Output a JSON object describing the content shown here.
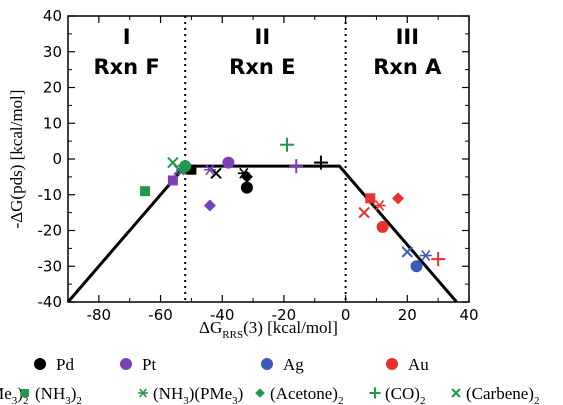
{
  "chart_data": {
    "type": "scatter",
    "xlabel_main": "ΔG",
    "xlabel_sub": "RRS",
    "xlabel_rest": "(3) [kcal/mol]",
    "ylabel": "-ΔG(pds) [kcal/mol]",
    "xlim": [
      -90,
      40
    ],
    "ylim": [
      -40,
      40
    ],
    "xticks": [
      -80,
      -60,
      -40,
      -20,
      0,
      20,
      40
    ],
    "yticks": [
      -40,
      -30,
      -20,
      -10,
      0,
      10,
      20,
      30,
      40
    ],
    "grid": false,
    "regions": [
      {
        "roman": "I",
        "rxn": "Rxn F",
        "x_center": -71
      },
      {
        "roman": "II",
        "rxn": "Rxn E",
        "x_center": -27
      },
      {
        "roman": "III",
        "rxn": "Rxn A",
        "x_center": 20
      }
    ],
    "dividers": [
      -52,
      0
    ],
    "volcano_line": [
      [
        -90,
        -40
      ],
      [
        -52,
        -2
      ],
      [
        -2,
        -2
      ],
      [
        36,
        -40
      ]
    ],
    "metals": [
      {
        "name": "Pd",
        "color": "#000000"
      },
      {
        "name": "Pt",
        "color": "#7b3fb8"
      },
      {
        "name": "Ag",
        "color": "#3b5bb5"
      },
      {
        "name": "Au",
        "color": "#e8322e"
      }
    ],
    "ligands": [
      {
        "label": "(PMe",
        "sub": "3",
        "close": ")",
        "sub2": "2",
        "marker": "circle"
      },
      {
        "label": "(NH",
        "sub": "3",
        "close": ")",
        "sub2": "2",
        "marker": "square"
      },
      {
        "label": "(NH",
        "sub": "3",
        "close": ")(PMe",
        "sub2": "3",
        "end": ")",
        "marker": "asterisk"
      },
      {
        "label": "(Acetone)",
        "sub": "2",
        "marker": "diamond"
      },
      {
        "label": "(CO)",
        "sub": "2",
        "marker": "plus"
      },
      {
        "label": "(Carbene)",
        "sub": "2",
        "marker": "cross"
      }
    ],
    "points": [
      {
        "metal": "Pd",
        "ligand": "circle",
        "x": -32,
        "y": -8
      },
      {
        "metal": "Pd",
        "ligand": "square",
        "x": -50,
        "y": -3
      },
      {
        "metal": "Pd",
        "ligand": "asterisk",
        "x": -33,
        "y": -4
      },
      {
        "metal": "Pd",
        "ligand": "diamond",
        "x": -32,
        "y": -5
      },
      {
        "metal": "Pd",
        "ligand": "plus",
        "x": -8,
        "y": -1
      },
      {
        "metal": "Pd",
        "ligand": "cross",
        "x": -42,
        "y": -4
      },
      {
        "metal": "Pt",
        "ligand": "circle",
        "x": -38,
        "y": -1
      },
      {
        "metal": "Pt",
        "ligand": "square",
        "x": -56,
        "y": -6
      },
      {
        "metal": "Pt",
        "ligand": "asterisk",
        "x": -44,
        "y": -3
      },
      {
        "metal": "Pt",
        "ligand": "diamond",
        "x": -44,
        "y": -13
      },
      {
        "metal": "Pt",
        "ligand": "plus",
        "x": -16,
        "y": -2
      },
      {
        "metal": "Pt",
        "ligand": "cross",
        "x": -54,
        "y": -3
      },
      {
        "metal": "Ag",
        "ligand": "circle",
        "x": 23,
        "y": -30
      },
      {
        "metal": "Ag",
        "ligand": "asterisk",
        "x": 26,
        "y": -27
      },
      {
        "metal": "Ag",
        "ligand": "cross",
        "x": 20,
        "y": -26
      },
      {
        "metal": "Au",
        "ligand": "circle",
        "x": 12,
        "y": -19
      },
      {
        "metal": "Au",
        "ligand": "square",
        "x": 8,
        "y": -11
      },
      {
        "metal": "Au",
        "ligand": "asterisk",
        "x": 11,
        "y": -13
      },
      {
        "metal": "Au",
        "ligand": "diamond",
        "x": 17,
        "y": -11
      },
      {
        "metal": "Au",
        "ligand": "plus",
        "x": 30,
        "y": -28
      },
      {
        "metal": "Au",
        "ligand": "cross",
        "x": 6,
        "y": -15
      },
      {
        "metal": "none",
        "ligand": "circle",
        "x": -52,
        "y": -2,
        "color": "#1e9a4a"
      },
      {
        "metal": "none",
        "ligand": "square",
        "x": -65,
        "y": -9,
        "color": "#1e9a4a"
      },
      {
        "metal": "none",
        "ligand": "asterisk",
        "x": -53,
        "y": -3,
        "color": "#1e9a4a"
      },
      {
        "metal": "none",
        "ligand": "plus",
        "x": -19,
        "y": 4,
        "color": "#1e9a4a"
      },
      {
        "metal": "none",
        "ligand": "cross",
        "x": -56,
        "y": -1,
        "color": "#1e9a4a"
      }
    ],
    "ligand_color": "#1e9a4a"
  }
}
